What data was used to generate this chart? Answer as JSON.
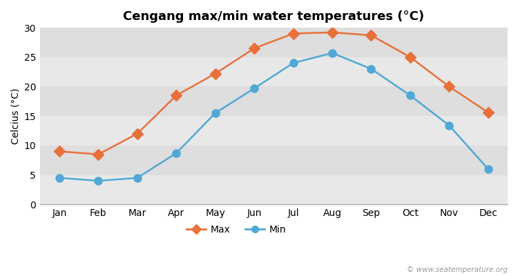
{
  "title": "Cengang max/min water temperatures (°C)",
  "xlabel_months": [
    "Jan",
    "Feb",
    "Mar",
    "Apr",
    "May",
    "Jun",
    "Jul",
    "Aug",
    "Sep",
    "Oct",
    "Nov",
    "Dec"
  ],
  "max_temps": [
    9.0,
    8.5,
    12.0,
    18.5,
    22.2,
    26.5,
    29.0,
    29.2,
    28.7,
    25.0,
    20.0,
    15.6
  ],
  "min_temps": [
    4.5,
    4.0,
    4.5,
    8.7,
    15.5,
    19.7,
    24.0,
    25.7,
    23.0,
    18.5,
    13.4,
    6.0
  ],
  "max_color": "#e8703a",
  "min_color": "#4fa8d5",
  "fig_bg_color": "#ffffff",
  "plot_bg_color": "#e8e8e8",
  "band_colors": [
    "#e8e8e8",
    "#dedede"
  ],
  "grid_color": "#ffffff",
  "ylim": [
    0,
    30
  ],
  "yticks": [
    0,
    5,
    10,
    15,
    20,
    25,
    30
  ],
  "ylabel": "Celcius (°C)",
  "watermark": "© www.seatemperature.org",
  "legend_max": "Max",
  "legend_min": "Min",
  "title_fontsize": 13,
  "axis_fontsize": 10,
  "watermark_fontsize": 7.5
}
